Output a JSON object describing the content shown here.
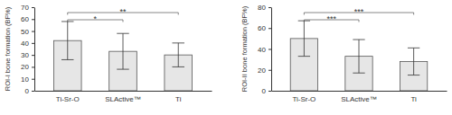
{
  "chart_data": [
    {
      "type": "bar",
      "y_label": "ROI-I bone formation (BF%)",
      "categories": [
        "Ti-Sr-O",
        "SLActive™",
        "Ti"
      ],
      "values": [
        42,
        33,
        30
      ],
      "errors": [
        16,
        15,
        10
      ],
      "color": "#e6e6e6",
      "ylim": [
        0,
        70
      ],
      "yticks": [
        0,
        10,
        20,
        30,
        40,
        50,
        60,
        70
      ],
      "annotations": [
        {
          "text": "*",
          "categories": [
            "Ti-Sr-O",
            "SLActive™"
          ]
        },
        {
          "text": "**",
          "categories": [
            "Ti-Sr-O",
            "Ti"
          ]
        }
      ]
    },
    {
      "type": "bar",
      "y_label": "ROI-II bone formation (BF%)",
      "categories": [
        "Ti-Sr-O",
        "SLActive™",
        "Ti"
      ],
      "values": [
        50,
        33,
        28
      ],
      "errors": [
        17,
        16,
        13
      ],
      "color": "#e6e6e6",
      "ylim": [
        0,
        80
      ],
      "yticks": [
        0,
        20,
        40,
        60,
        80
      ],
      "annotations": [
        {
          "text": "***",
          "categories": [
            "Ti-Sr-O",
            "SLActive™"
          ]
        },
        {
          "text": "***",
          "categories": [
            "Ti-Sr-O",
            "Ti"
          ]
        }
      ]
    }
  ]
}
